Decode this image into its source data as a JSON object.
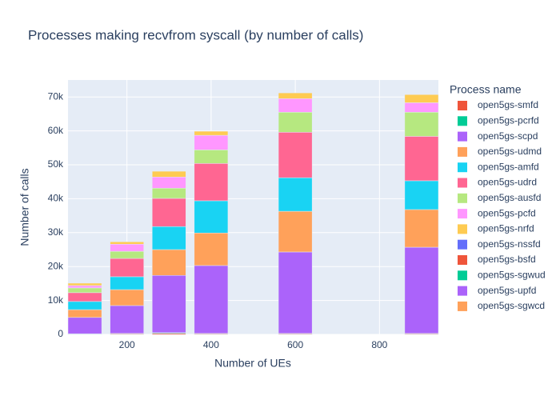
{
  "chart_data": {
    "type": "stacked-bar",
    "title": "Processes making recvfrom syscall (by number of calls)",
    "x_label": "Number of UEs",
    "y_label": "Number of calls",
    "legend_title": "Process name",
    "x": [
      100,
      200,
      300,
      400,
      600,
      900
    ],
    "xlim": [
      60,
      940
    ],
    "xticks": [
      200,
      400,
      600,
      800
    ],
    "ylim": [
      0,
      75000
    ],
    "yticks": [
      0,
      {
        "value": 10000,
        "label": "10k"
      },
      {
        "value": 20000,
        "label": "20k"
      },
      {
        "value": 30000,
        "label": "30k"
      },
      {
        "value": 40000,
        "label": "40k"
      },
      {
        "value": 50000,
        "label": "50k"
      },
      {
        "value": 60000,
        "label": "60k"
      },
      {
        "value": 70000,
        "label": "70k"
      }
    ],
    "grid": true,
    "series": [
      {
        "name": "open5gs-smfd",
        "color": "#EF553B",
        "values": [
          100,
          200,
          300,
          200,
          200,
          200
        ]
      },
      {
        "name": "open5gs-pcrfd",
        "color": "#00CC96",
        "values": [
          100,
          100,
          200,
          100,
          100,
          100
        ]
      },
      {
        "name": "open5gs-scpd",
        "color": "#AB63FA",
        "values": [
          4800,
          8200,
          16900,
          20000,
          24000,
          25400
        ]
      },
      {
        "name": "open5gs-udmd",
        "color": "#FFA15A",
        "values": [
          2300,
          4700,
          7600,
          9600,
          12000,
          11100
        ]
      },
      {
        "name": "open5gs-amfd",
        "color": "#19D3F3",
        "values": [
          2400,
          3800,
          6800,
          9500,
          9900,
          8500
        ]
      },
      {
        "name": "open5gs-udrd",
        "color": "#FF6692",
        "values": [
          2600,
          5400,
          8300,
          11000,
          13400,
          13100
        ]
      },
      {
        "name": "open5gs-ausfd",
        "color": "#B6E880",
        "values": [
          1400,
          2100,
          3000,
          4000,
          5900,
          7100
        ]
      },
      {
        "name": "open5gs-pcfd",
        "color": "#FF97FF",
        "values": [
          700,
          2100,
          3300,
          4300,
          4000,
          2800
        ]
      },
      {
        "name": "open5gs-nrfd",
        "color": "#FECB52",
        "values": [
          700,
          700,
          1700,
          1200,
          1700,
          2400
        ]
      },
      {
        "name": "open5gs-nssfd",
        "color": "#636EFA",
        "values": [
          0,
          0,
          0,
          0,
          0,
          0
        ]
      },
      {
        "name": "open5gs-bsfd",
        "color": "#EF553B",
        "values": [
          0,
          0,
          0,
          0,
          0,
          0
        ]
      },
      {
        "name": "open5gs-sgwud",
        "color": "#00CC96",
        "values": [
          0,
          0,
          0,
          0,
          0,
          0
        ]
      },
      {
        "name": "open5gs-upfd",
        "color": "#AB63FA",
        "values": [
          0,
          0,
          0,
          0,
          0,
          0
        ]
      },
      {
        "name": "open5gs-sgwcd",
        "color": "#FFA15A",
        "values": [
          0,
          0,
          0,
          0,
          0,
          0
        ]
      }
    ]
  }
}
